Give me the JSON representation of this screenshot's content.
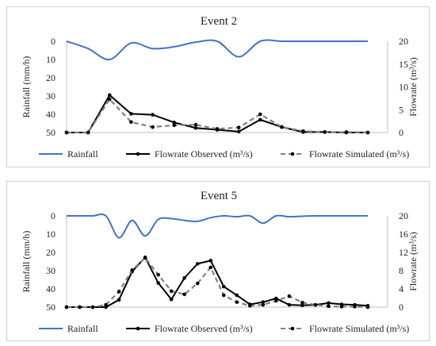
{
  "chart_data": [
    {
      "type": "line",
      "title": "Event 2",
      "ylabel_left": "Rainfall (mm/h)",
      "ylabel_right": "Flowrate (m³/s)",
      "left_axis": {
        "range": [
          50,
          0
        ],
        "ticks": [
          "0",
          "10",
          "20",
          "30",
          "40",
          "50"
        ],
        "inverted": true
      },
      "right_axis": {
        "range": [
          0,
          20
        ],
        "ticks": [
          "0",
          "5",
          "10",
          "15",
          "20"
        ]
      },
      "x": [
        1,
        2,
        3,
        4,
        5,
        6,
        7,
        8,
        9,
        10,
        11,
        12,
        13,
        14,
        15
      ],
      "series": [
        {
          "name": "Rainfall",
          "axis": "left",
          "color": "#4472c4",
          "style": "solid",
          "markers": false,
          "values": [
            0,
            4,
            10,
            1,
            4,
            3,
            0.5,
            0,
            8.5,
            0,
            0,
            0,
            0,
            0,
            0
          ]
        },
        {
          "name": "Flowrate Observed (m³/s)",
          "axis": "right",
          "color": "#000000",
          "style": "solid",
          "markers": true,
          "values": [
            0,
            0,
            8.2,
            4.1,
            3.9,
            2.2,
            1.0,
            0.6,
            0.2,
            2.8,
            1.2,
            0.1,
            0.1,
            0,
            0
          ]
        },
        {
          "name": "Flowrate Simulated (m³/s)",
          "axis": "right",
          "color": "#808080",
          "style": "dashed",
          "markers": true,
          "values": [
            0,
            0,
            7.3,
            2.3,
            1.2,
            1.6,
            1.7,
            0.8,
            1.1,
            4.0,
            1.2,
            0.3,
            0.1,
            0.1,
            0
          ]
        }
      ],
      "legend": "bottom",
      "grid": false
    },
    {
      "type": "line",
      "title": "Event 5",
      "ylabel_left": "Rainfall (mm/h)",
      "ylabel_right": "Flowrate (m³/s)",
      "left_axis": {
        "range": [
          50,
          0
        ],
        "ticks": [
          "0",
          "10",
          "20",
          "30",
          "40",
          "50"
        ],
        "inverted": true
      },
      "right_axis": {
        "range": [
          0,
          20
        ],
        "ticks": [
          "0",
          "4",
          "8",
          "12",
          "16",
          "20"
        ]
      },
      "x": [
        1,
        2,
        3,
        4,
        5,
        6,
        7,
        8,
        9,
        10,
        11,
        12,
        13,
        14,
        15,
        16,
        17,
        18,
        19,
        20,
        21,
        22,
        23,
        24
      ],
      "series": [
        {
          "name": "Rainfall",
          "axis": "left",
          "color": "#4472c4",
          "style": "solid",
          "markers": false,
          "values": [
            0,
            0,
            0,
            0,
            12,
            2.5,
            11,
            2,
            1.5,
            2.5,
            3,
            1,
            0,
            0.5,
            0,
            4,
            0,
            0.5,
            0.2,
            0,
            0,
            0,
            0,
            0
          ]
        },
        {
          "name": "Flowrate Observed (m³/s)",
          "axis": "right",
          "color": "#000000",
          "style": "solid",
          "markers": true,
          "values": [
            0,
            0,
            0,
            0,
            1.6,
            7.8,
            10.9,
            5.3,
            1.7,
            6.4,
            9.5,
            10.2,
            4.5,
            2.6,
            0.6,
            1.1,
            1.9,
            0.5,
            0.4,
            0.5,
            0.9,
            0.6,
            0.5,
            0.3
          ]
        },
        {
          "name": "Flowrate Simulated (m³/s)",
          "axis": "right",
          "color": "#808080",
          "style": "dashed",
          "markers": true,
          "values": [
            0,
            0,
            0,
            0.5,
            3.4,
            8.1,
            10.8,
            7.1,
            3.5,
            2.8,
            5.2,
            8.7,
            2.6,
            1.1,
            0.3,
            0.5,
            1.4,
            2.4,
            1.0,
            0.5,
            0.2,
            0.1,
            0.1,
            0
          ]
        }
      ],
      "legend": "bottom",
      "grid": false
    }
  ]
}
